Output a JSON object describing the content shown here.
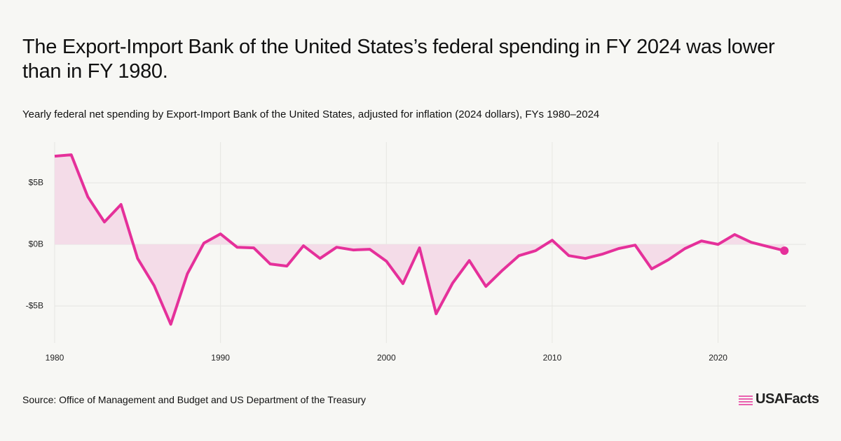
{
  "chart_data": {
    "type": "area-line",
    "title": "The Export-Import Bank of the United States’s federal spending in FY 2024 was lower than in FY 1980.",
    "subtitle": "Yearly federal net spending by Export-Import Bank of the United States, adjusted for inflation (2024 dollars), FYs 1980–2024",
    "source": "Source: Office of Management and Budget and US Department of the Treasury",
    "brand": "USAFacts",
    "x": [
      1980,
      1981,
      1982,
      1983,
      1984,
      1985,
      1986,
      1987,
      1988,
      1989,
      1990,
      1991,
      1992,
      1993,
      1994,
      1995,
      1996,
      1997,
      1998,
      1999,
      2000,
      2001,
      2002,
      2003,
      2004,
      2005,
      2006,
      2007,
      2008,
      2009,
      2010,
      2011,
      2012,
      2013,
      2014,
      2015,
      2016,
      2017,
      2018,
      2019,
      2020,
      2021,
      2022,
      2023,
      2024
    ],
    "values": [
      7.16,
      7.27,
      3.86,
      1.82,
      3.24,
      -1.14,
      -3.35,
      -6.48,
      -2.39,
      0.11,
      0.85,
      -0.23,
      -0.28,
      -1.59,
      -1.76,
      -0.11,
      -1.14,
      -0.23,
      -0.45,
      -0.4,
      -1.36,
      -3.18,
      -0.28,
      -5.63,
      -3.13,
      -1.31,
      -3.41,
      -2.1,
      -0.91,
      -0.51,
      0.34,
      -0.91,
      -1.14,
      -0.8,
      -0.34,
      -0.06,
      -1.99,
      -1.25,
      -0.34,
      0.28,
      0,
      0.8,
      0.17,
      -0.17,
      -0.51
    ],
    "color": "#e5309a",
    "area_color": "#f4dce8",
    "xlim": [
      1980,
      2025.3
    ],
    "xticks": [
      1980,
      1990,
      2000,
      2010,
      2020
    ],
    "ylim": [
      -8,
      8.3
    ],
    "yticks": [
      {
        "value": 5,
        "label": "$5B"
      },
      {
        "value": 0,
        "label": "$0B"
      },
      {
        "value": -5,
        "label": "-$5B"
      }
    ],
    "grid": true,
    "end_marker": true
  }
}
